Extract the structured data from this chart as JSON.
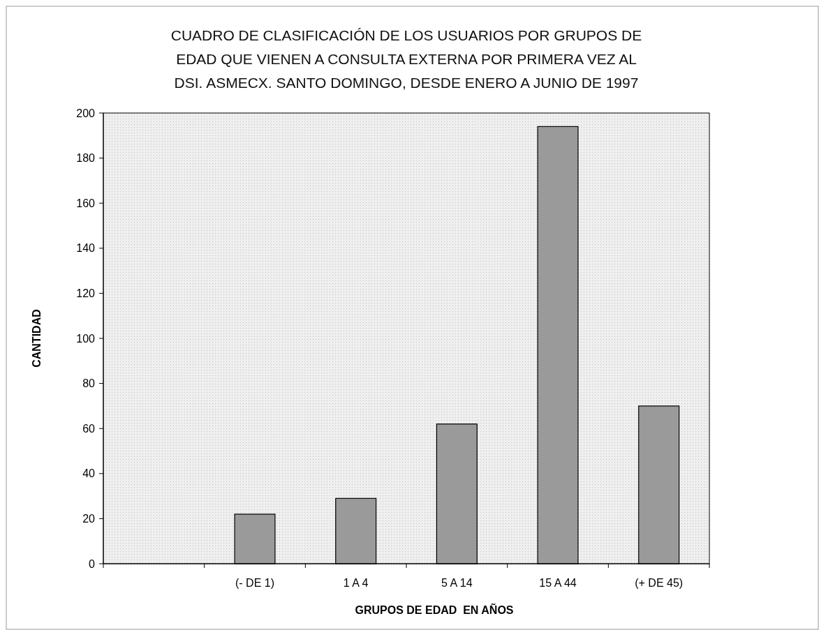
{
  "chart_data": {
    "type": "bar",
    "title": "CUADRO DE CLASIFICACIÓN DE LOS USUARIOS POR GRUPOS DE EDAD QUE VIENEN A CONSULTA EXTERNA POR PRIMERA VEZ AL DSI. ASMECX. SANTO DOMINGO, DESDE ENERO A JUNIO DE 1997",
    "xlabel": "GRUPOS DE EDAD  EN AÑOS",
    "ylabel": "CANTIDAD",
    "categories": [
      null,
      "(- DE 1)",
      "1 A 4",
      "5 A 14",
      "15 A 44",
      "(+ DE 45)"
    ],
    "values": [
      null,
      22,
      29,
      62,
      194,
      70
    ],
    "color": "#9a9a9a",
    "ylim": [
      0,
      200
    ],
    "yticks": [
      0,
      20,
      40,
      60,
      80,
      100,
      120,
      140,
      160,
      180,
      200
    ],
    "grid": false
  }
}
